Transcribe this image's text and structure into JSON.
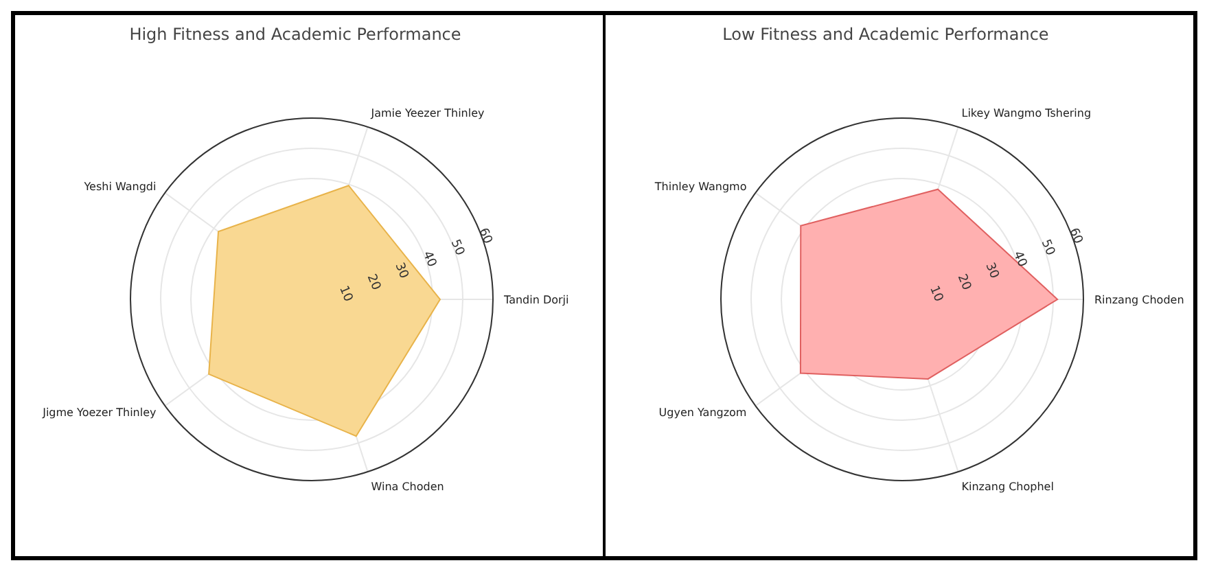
{
  "chart_data": [
    {
      "type": "radar",
      "title": "High Fitness and Academic Performance",
      "categories": [
        "Jamie Yeezer Thinley",
        "Tandin Dorji",
        "Wina Choden",
        "Jigme Yoezer Thinley",
        "Yeshi Wangdi"
      ],
      "series": [
        {
          "color": "#f9d892",
          "values": [
            39.6,
            42.5,
            47.6,
            42.1,
            38.2
          ]
        }
      ],
      "ylim": [
        0,
        60
      ],
      "yticks": [
        10,
        20,
        30,
        40,
        50,
        60
      ],
      "grid": true
    },
    {
      "type": "radar",
      "title": "Low Fitness and Academic Performance",
      "categories": [
        "Likey Wangmo Tshering",
        "Rinzang Choden",
        "Kinzang Chophel",
        "Ugyen Yangzom",
        "Thinley Wangmo"
      ],
      "series": [
        {
          "color": "#ffb0b0",
          "values": [
            38.3,
            51.4,
            27.7,
            41.6,
            41.5
          ]
        }
      ],
      "ylim": [
        0,
        60
      ],
      "yticks": [
        10,
        20,
        30,
        40,
        50,
        60
      ],
      "grid": true
    }
  ]
}
